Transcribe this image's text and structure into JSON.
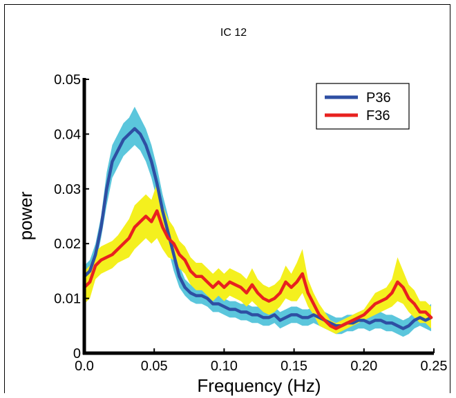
{
  "chart_data": {
    "type": "line",
    "title": "IC 12",
    "xlabel": "Frequency (Hz)",
    "ylabel": "power",
    "xlim": [
      0,
      0.25
    ],
    "ylim": [
      0,
      0.05
    ],
    "xticks": [
      "0.0",
      "0.05",
      "0.10",
      "0.15",
      "0.20",
      "0.25"
    ],
    "yticks": [
      "0",
      "0.01",
      "0.02",
      "0.03",
      "0.04",
      "0.05"
    ],
    "legend_position": "top-right",
    "series": [
      {
        "name": "P36",
        "color": "#2e4fa3",
        "band_color": "#5bc6dc",
        "x": [
          0.0,
          0.004,
          0.008,
          0.012,
          0.016,
          0.02,
          0.024,
          0.028,
          0.032,
          0.036,
          0.04,
          0.044,
          0.048,
          0.052,
          0.056,
          0.06,
          0.064,
          0.068,
          0.072,
          0.076,
          0.08,
          0.084,
          0.088,
          0.092,
          0.096,
          0.1,
          0.104,
          0.108,
          0.112,
          0.116,
          0.12,
          0.124,
          0.128,
          0.132,
          0.136,
          0.14,
          0.144,
          0.148,
          0.152,
          0.156,
          0.16,
          0.164,
          0.168,
          0.172,
          0.176,
          0.18,
          0.184,
          0.188,
          0.192,
          0.196,
          0.2,
          0.204,
          0.208,
          0.212,
          0.216,
          0.22,
          0.224,
          0.228,
          0.232,
          0.236,
          0.24,
          0.244,
          0.248
        ],
        "y": [
          0.014,
          0.015,
          0.018,
          0.023,
          0.03,
          0.035,
          0.037,
          0.039,
          0.04,
          0.041,
          0.04,
          0.038,
          0.035,
          0.031,
          0.026,
          0.022,
          0.018,
          0.014,
          0.012,
          0.011,
          0.0105,
          0.0105,
          0.01,
          0.009,
          0.009,
          0.0085,
          0.008,
          0.008,
          0.0075,
          0.0075,
          0.007,
          0.007,
          0.0065,
          0.0065,
          0.007,
          0.006,
          0.0065,
          0.007,
          0.007,
          0.0065,
          0.0065,
          0.007,
          0.0065,
          0.006,
          0.0055,
          0.005,
          0.005,
          0.0055,
          0.0055,
          0.006,
          0.006,
          0.0055,
          0.006,
          0.006,
          0.0055,
          0.0055,
          0.005,
          0.0045,
          0.005,
          0.006,
          0.0065,
          0.006,
          0.0065
        ],
        "lower": [
          0.012,
          0.013,
          0.016,
          0.021,
          0.027,
          0.032,
          0.034,
          0.036,
          0.037,
          0.038,
          0.037,
          0.035,
          0.032,
          0.028,
          0.023,
          0.019,
          0.015,
          0.012,
          0.0105,
          0.0095,
          0.009,
          0.009,
          0.0085,
          0.0075,
          0.0075,
          0.007,
          0.0065,
          0.0065,
          0.006,
          0.006,
          0.0055,
          0.0055,
          0.005,
          0.005,
          0.0055,
          0.0045,
          0.005,
          0.0055,
          0.0055,
          0.005,
          0.005,
          0.0055,
          0.005,
          0.0045,
          0.004,
          0.0035,
          0.0035,
          0.004,
          0.004,
          0.0045,
          0.0045,
          0.004,
          0.0045,
          0.0045,
          0.004,
          0.004,
          0.0035,
          0.003,
          0.0035,
          0.0045,
          0.005,
          0.0045,
          0.004
        ],
        "upper": [
          0.016,
          0.017,
          0.02,
          0.025,
          0.033,
          0.038,
          0.04,
          0.042,
          0.043,
          0.045,
          0.043,
          0.041,
          0.038,
          0.034,
          0.029,
          0.025,
          0.021,
          0.016,
          0.0135,
          0.0125,
          0.012,
          0.012,
          0.0115,
          0.0105,
          0.0105,
          0.01,
          0.0095,
          0.0095,
          0.009,
          0.009,
          0.0085,
          0.0085,
          0.008,
          0.008,
          0.0085,
          0.0075,
          0.008,
          0.0085,
          0.0085,
          0.008,
          0.008,
          0.0085,
          0.008,
          0.0075,
          0.007,
          0.0065,
          0.0065,
          0.007,
          0.007,
          0.0075,
          0.0075,
          0.007,
          0.0075,
          0.0075,
          0.007,
          0.007,
          0.0065,
          0.006,
          0.0065,
          0.0075,
          0.008,
          0.008,
          0.009
        ]
      },
      {
        "name": "F36",
        "color": "#e8211f",
        "band_color": "#f4f01e",
        "x": [
          0.0,
          0.004,
          0.008,
          0.012,
          0.016,
          0.02,
          0.024,
          0.028,
          0.032,
          0.036,
          0.04,
          0.044,
          0.048,
          0.052,
          0.056,
          0.06,
          0.064,
          0.068,
          0.072,
          0.076,
          0.08,
          0.084,
          0.088,
          0.092,
          0.096,
          0.1,
          0.104,
          0.108,
          0.112,
          0.116,
          0.12,
          0.124,
          0.128,
          0.132,
          0.136,
          0.14,
          0.144,
          0.148,
          0.152,
          0.156,
          0.16,
          0.164,
          0.168,
          0.172,
          0.176,
          0.18,
          0.184,
          0.188,
          0.192,
          0.196,
          0.2,
          0.204,
          0.208,
          0.212,
          0.216,
          0.22,
          0.224,
          0.228,
          0.232,
          0.236,
          0.24,
          0.244,
          0.248
        ],
        "y": [
          0.012,
          0.013,
          0.016,
          0.017,
          0.0175,
          0.018,
          0.019,
          0.02,
          0.021,
          0.023,
          0.024,
          0.025,
          0.024,
          0.026,
          0.023,
          0.021,
          0.02,
          0.018,
          0.017,
          0.015,
          0.014,
          0.014,
          0.013,
          0.012,
          0.013,
          0.012,
          0.013,
          0.0125,
          0.012,
          0.011,
          0.0125,
          0.011,
          0.01,
          0.0095,
          0.01,
          0.011,
          0.013,
          0.012,
          0.013,
          0.0145,
          0.011,
          0.009,
          0.007,
          0.006,
          0.005,
          0.0045,
          0.005,
          0.0055,
          0.006,
          0.0065,
          0.007,
          0.008,
          0.009,
          0.0095,
          0.01,
          0.011,
          0.013,
          0.012,
          0.01,
          0.009,
          0.0075,
          0.0075,
          0.0065
        ],
        "lower": [
          0.009,
          0.01,
          0.0135,
          0.0145,
          0.015,
          0.0155,
          0.0165,
          0.017,
          0.0175,
          0.019,
          0.02,
          0.021,
          0.02,
          0.021,
          0.019,
          0.0175,
          0.017,
          0.0155,
          0.0145,
          0.0125,
          0.0115,
          0.0115,
          0.0105,
          0.0095,
          0.0105,
          0.0095,
          0.0105,
          0.01,
          0.0095,
          0.0085,
          0.0095,
          0.0085,
          0.0075,
          0.007,
          0.0075,
          0.0085,
          0.01,
          0.0095,
          0.0095,
          0.011,
          0.0085,
          0.007,
          0.005,
          0.0045,
          0.004,
          0.0035,
          0.004,
          0.0045,
          0.005,
          0.0055,
          0.006,
          0.0065,
          0.007,
          0.0075,
          0.008,
          0.0085,
          0.0095,
          0.009,
          0.0075,
          0.0065,
          0.0055,
          0.0055,
          0.0045
        ],
        "upper": [
          0.015,
          0.016,
          0.0185,
          0.0195,
          0.02,
          0.0205,
          0.0215,
          0.023,
          0.0245,
          0.027,
          0.028,
          0.029,
          0.028,
          0.031,
          0.027,
          0.0245,
          0.023,
          0.0205,
          0.0195,
          0.0175,
          0.0165,
          0.0165,
          0.0155,
          0.0145,
          0.0155,
          0.0145,
          0.0155,
          0.015,
          0.0145,
          0.0135,
          0.0155,
          0.0135,
          0.0125,
          0.012,
          0.0125,
          0.0135,
          0.016,
          0.0145,
          0.0165,
          0.019,
          0.0135,
          0.011,
          0.009,
          0.0075,
          0.006,
          0.0055,
          0.006,
          0.0065,
          0.007,
          0.0075,
          0.008,
          0.0095,
          0.011,
          0.0115,
          0.012,
          0.0135,
          0.0175,
          0.015,
          0.0125,
          0.0115,
          0.0095,
          0.0095,
          0.0085
        ]
      }
    ]
  }
}
